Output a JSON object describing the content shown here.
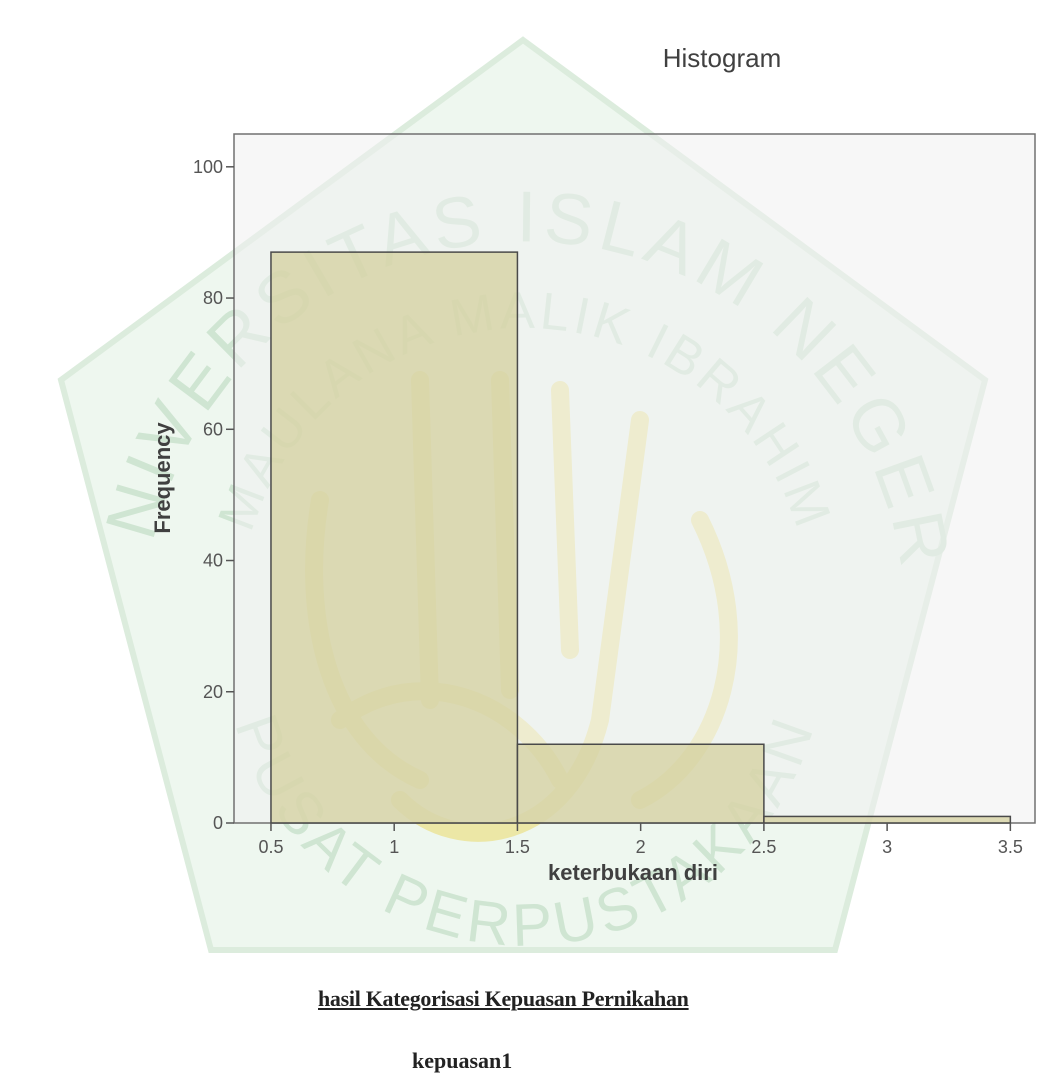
{
  "chart_data": {
    "type": "bar",
    "title": "Histogram",
    "xlabel": "keterbukaan diri",
    "ylabel": "Frequency",
    "bins": [
      {
        "x0": 0.5,
        "x1": 1.5,
        "value": 87
      },
      {
        "x0": 1.5,
        "x1": 2.5,
        "value": 12
      },
      {
        "x0": 2.5,
        "x1": 3.5,
        "value": 1
      }
    ],
    "xlim": [
      0.35,
      3.6
    ],
    "ylim": [
      0,
      105
    ],
    "xticks": [
      "0.5",
      "1",
      "1.5",
      "2",
      "2.5",
      "3",
      "3.5"
    ],
    "yticks": [
      "0",
      "20",
      "40",
      "60",
      "80",
      "100"
    ],
    "grid": false,
    "colors": {
      "plot_bg": "#f0f0f0",
      "bar_fill": "#d3ce9b",
      "bar_stroke": "#4a4a4a",
      "watermark_green": "#cfe5d2",
      "watermark_gold": "#ece7a6"
    }
  },
  "document": {
    "heading": "hasil Kategorisasi Kepuasan Pernikahan",
    "subheading": "kepuasan1"
  },
  "watermark": {
    "line1": "UNIVERSITAS ISLAM NEGERI",
    "line2": "MAULANA MALIK IBRAHIM",
    "line3": "PUSAT PERPUSTAKAAN"
  }
}
